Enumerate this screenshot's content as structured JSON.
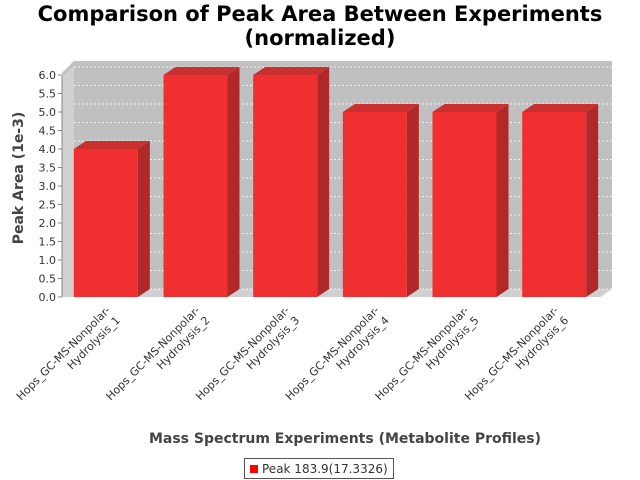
{
  "chart_data": {
    "type": "bar",
    "title_line1": "Comparison of Peak Area Between Experiments",
    "title_line2": "(normalized)",
    "xlabel": "Mass Spectrum Experiments (Metabolite Profiles)",
    "ylabel": "Peak Area (1e-3)",
    "categories": [
      [
        "Hops_GC-MS-Nonpolar-",
        "Hydrolysis_1"
      ],
      [
        "Hops_GC-MS-Nonpolar-",
        "Hydrolysis_2"
      ],
      [
        "Hops_GC-MS-Nonpolar-",
        "Hydrolysis_3"
      ],
      [
        "Hops_GC-MS-Nonpolar-",
        "Hydrolysis_4"
      ],
      [
        "Hops_GC-MS-Nonpolar-",
        "Hydrolysis_5"
      ],
      [
        "Hops_GC-MS-Nonpolar-",
        "Hydrolysis_6"
      ]
    ],
    "series": [
      {
        "name": "Peak 183.9(17.3326)",
        "values": [
          4.0,
          6.0,
          6.0,
          5.0,
          5.0,
          5.0
        ]
      }
    ],
    "ylim": [
      0,
      6.0
    ],
    "yticks": [
      "0.0",
      "0.5",
      "1.0",
      "1.5",
      "2.0",
      "2.5",
      "3.0",
      "3.5",
      "4.0",
      "4.5",
      "5.0",
      "5.5",
      "6.0"
    ],
    "grid": true,
    "legend_position": "bottom",
    "colors": {
      "bar": "#ff0000",
      "bar_front": "#f03030",
      "bar_side": "#b02828",
      "bar_top": "#c83030",
      "plot_bg": "#c0c0c0",
      "plot_wall": "#d0d0d0"
    }
  }
}
